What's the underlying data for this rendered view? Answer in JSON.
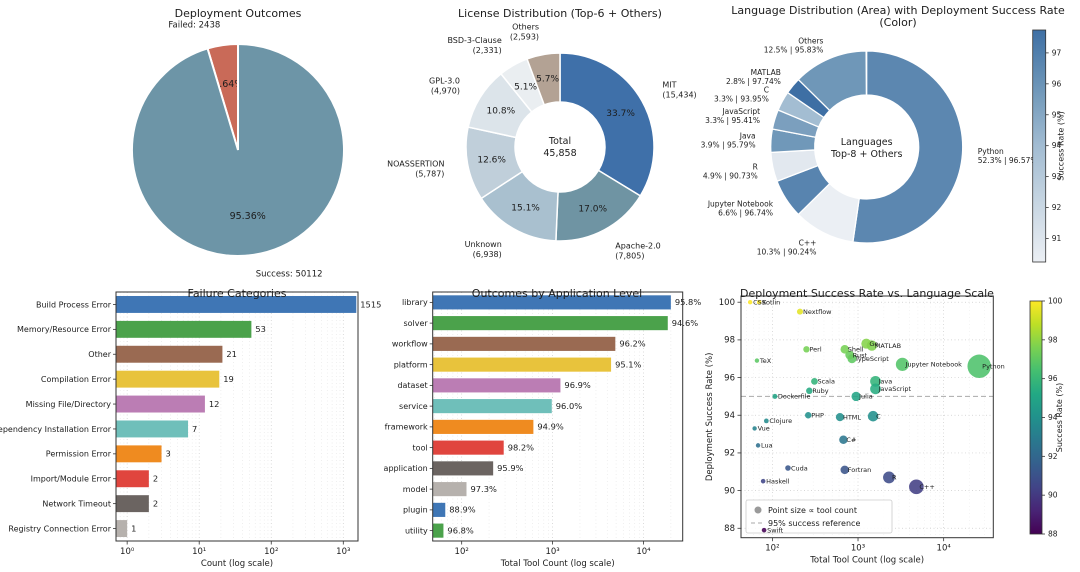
{
  "chart_data": [
    {
      "type": "pie",
      "title": "Deployment Outcomes",
      "slices": [
        {
          "name": "Failed",
          "outer_label": "Failed: 2438",
          "count": 2438,
          "pct": 4.64,
          "pct_label": "4.64%",
          "color": "#c96a58"
        },
        {
          "name": "Success",
          "outer_label": "Success: 50112",
          "count": 50112,
          "pct": 95.36,
          "pct_label": "95.36%",
          "color": "#6d95a7"
        }
      ]
    },
    {
      "type": "pie",
      "title": "License Distribution (Top-6 + Others)",
      "center_label": [
        "Total",
        "45,858"
      ],
      "slices": [
        {
          "name": "MIT",
          "count_label": "(15,434)",
          "count": 15434,
          "pct": 33.7,
          "pct_label": "33.7%",
          "color": "#3f70a9"
        },
        {
          "name": "Apache-2.0",
          "count_label": "(7,805)",
          "count": 7805,
          "pct": 17.0,
          "pct_label": "17.0%",
          "color": "#6f94a3"
        },
        {
          "name": "Unknown",
          "count_label": "(6,938)",
          "count": 6938,
          "pct": 15.1,
          "pct_label": "15.1%",
          "color": "#a9c0cf"
        },
        {
          "name": "NOASSERTION",
          "count_label": "(5,787)",
          "count": 5787,
          "pct": 12.6,
          "pct_label": "12.6%",
          "color": "#c0cfda"
        },
        {
          "name": "GPL-3.0",
          "count_label": "(4,970)",
          "count": 4970,
          "pct": 10.8,
          "pct_label": "10.8%",
          "color": "#dce4ea"
        },
        {
          "name": "BSD-3-Clause",
          "count_label": "(2,331)",
          "count": 2331,
          "pct": 5.1,
          "pct_label": "5.1%",
          "color": "#eaeef1"
        },
        {
          "name": "Others",
          "count_label": "(2,593)",
          "count": 2593,
          "pct": 5.7,
          "pct_label": "5.7%",
          "color": "#b3a294"
        }
      ]
    },
    {
      "type": "pie",
      "title": "Language Distribution (Area) with Deployment Success Rate (Color)",
      "center_label": [
        "Languages",
        "Top-8 + Others"
      ],
      "colorbar": {
        "label": "Success Rate (%)",
        "ticks": [
          91,
          92,
          93,
          94,
          95,
          96,
          97
        ],
        "min": 90.24,
        "max": 97.74
      },
      "slices": [
        {
          "name": "Python",
          "pct": 52.3,
          "rate": 96.57,
          "share_label": "52.3% | 96.57%"
        },
        {
          "name": "C++",
          "pct": 10.3,
          "rate": 90.24,
          "share_label": "10.3% | 90.24%"
        },
        {
          "name": "Jupyter Notebook",
          "pct": 6.6,
          "rate": 96.74,
          "share_label": "6.6% | 96.74%"
        },
        {
          "name": "R",
          "pct": 4.9,
          "rate": 90.73,
          "share_label": "4.9% | 90.73%"
        },
        {
          "name": "Java",
          "pct": 3.9,
          "rate": 95.79,
          "share_label": "3.9% | 95.79%"
        },
        {
          "name": "JavaScript",
          "pct": 3.3,
          "rate": 95.41,
          "share_label": "3.3% | 95.41%"
        },
        {
          "name": "C",
          "pct": 3.3,
          "rate": 93.95,
          "share_label": "3.3% | 93.95%"
        },
        {
          "name": "MATLAB",
          "pct": 2.8,
          "rate": 97.74,
          "share_label": "2.8% | 97.74%"
        },
        {
          "name": "Others",
          "pct": 12.5,
          "rate": 95.83,
          "share_label": "12.5% | 95.83%"
        }
      ]
    },
    {
      "type": "bar",
      "title": "Failure Categories",
      "xlabel": "Count (log scale)",
      "xtick_labels": [
        "10⁰",
        "10¹",
        "10²",
        "10³"
      ],
      "xtick_values": [
        1,
        10,
        100,
        1000
      ],
      "xlim": [
        0.7,
        1600
      ],
      "categories": [
        "Build Process Error",
        "Memory/Resource Error",
        "Other",
        "Compilation Error",
        "Missing File/Directory",
        "Dependency Installation Error",
        "Permission Error",
        "Import/Module Error",
        "Network Timeout",
        "Registry Connection Error"
      ],
      "values": [
        1515,
        53,
        21,
        19,
        12,
        7,
        3,
        2,
        2,
        1
      ],
      "value_labels": [
        "1515",
        "53",
        "21",
        "19",
        "12",
        "7",
        "3",
        "2",
        "2",
        "1"
      ]
    },
    {
      "type": "bar",
      "title": "Outcomes by Application Level",
      "xlabel": "Total Tool Count (log scale)",
      "xtick_labels": [
        "10²",
        "10³",
        "10⁴"
      ],
      "xtick_values": [
        100,
        1000,
        10000
      ],
      "xlim": [
        48,
        27000
      ],
      "categories": [
        "library",
        "solver",
        "workflow",
        "platform",
        "dataset",
        "service",
        "framework",
        "tool",
        "application",
        "model",
        "plugin",
        "utility"
      ],
      "values": [
        20000,
        18500,
        4900,
        4400,
        1220,
        980,
        615,
        290,
        222,
        113,
        66,
        63
      ],
      "value_labels": [
        "95.8%",
        "94.6%",
        "96.2%",
        "95.1%",
        "96.9%",
        "96.0%",
        "94.9%",
        "98.2%",
        "95.9%",
        "97.3%",
        "88.9%",
        "96.8%"
      ]
    },
    {
      "type": "scatter",
      "title": "Deployment Success Rate vs. Language Scale",
      "xlabel": "Total Tool Count (log scale)",
      "ylabel": "Deployment Success Rate (%)",
      "xtick_labels": [
        "10²",
        "10³",
        "10⁴"
      ],
      "xtick_values": [
        100,
        1000,
        10000
      ],
      "ytick_values": [
        88,
        90,
        92,
        94,
        96,
        98,
        100
      ],
      "xlim": [
        43,
        38000
      ],
      "ylim": [
        87.5,
        100.33
      ],
      "reference_value": 95,
      "legend": [
        "Point size ∝ tool count",
        "95% success reference"
      ],
      "colorbar": {
        "label": "Success Rate (%)",
        "ticks": [
          88,
          90,
          92,
          94,
          96,
          98,
          100
        ],
        "min": 88,
        "max": 100
      },
      "points": [
        {
          "name": "CSS",
          "count": 55,
          "rate": 100.0
        },
        {
          "name": "Kotlin",
          "count": 70,
          "rate": 100.0
        },
        {
          "name": "Nextflow",
          "count": 210,
          "rate": 99.5
        },
        {
          "name": "Go",
          "count": 1250,
          "rate": 97.8
        },
        {
          "name": "MATLAB",
          "count": 1450,
          "rate": 97.7
        },
        {
          "name": "Perl",
          "count": 250,
          "rate": 97.5
        },
        {
          "name": "Shell",
          "count": 700,
          "rate": 97.5
        },
        {
          "name": "Rust",
          "count": 800,
          "rate": 97.2
        },
        {
          "name": "TypeScript",
          "count": 850,
          "rate": 97.0
        },
        {
          "name": "TeX",
          "count": 66,
          "rate": 96.9
        },
        {
          "name": "Jupyter Notebook",
          "count": 3300,
          "rate": 96.7
        },
        {
          "name": "Python",
          "count": 26000,
          "rate": 96.6
        },
        {
          "name": "Java",
          "count": 1600,
          "rate": 95.8
        },
        {
          "name": "Scala",
          "count": 310,
          "rate": 95.8
        },
        {
          "name": "JavaScript",
          "count": 1600,
          "rate": 95.4
        },
        {
          "name": "Ruby",
          "count": 270,
          "rate": 95.3
        },
        {
          "name": "Dockerfile",
          "count": 107,
          "rate": 95.0
        },
        {
          "name": "Julia",
          "count": 950,
          "rate": 95.0
        },
        {
          "name": "PHP",
          "count": 262,
          "rate": 94.0
        },
        {
          "name": "C",
          "count": 1500,
          "rate": 93.95
        },
        {
          "name": "HTML",
          "count": 615,
          "rate": 93.9
        },
        {
          "name": "Clojure",
          "count": 85,
          "rate": 93.7
        },
        {
          "name": "Vue",
          "count": 62,
          "rate": 93.3
        },
        {
          "name": "C#",
          "count": 675,
          "rate": 92.7
        },
        {
          "name": "Lua",
          "count": 68,
          "rate": 92.4
        },
        {
          "name": "Cuda",
          "count": 152,
          "rate": 91.2
        },
        {
          "name": "Fortran",
          "count": 700,
          "rate": 91.1
        },
        {
          "name": "R",
          "count": 2300,
          "rate": 90.7
        },
        {
          "name": "Haskell",
          "count": 78,
          "rate": 90.5
        },
        {
          "name": "C++",
          "count": 4800,
          "rate": 90.2
        },
        {
          "name": "Swift",
          "count": 80,
          "rate": 87.9
        }
      ]
    }
  ],
  "colors": {
    "text": "#1c1c1c",
    "spine": "#333333",
    "grid_major": "#cccccc",
    "grid_minor": "#e8e8e8",
    "reference_line": "#aaaaaa",
    "bar_palette": [
      "#3f76b5",
      "#4ba24b",
      "#9a6a52",
      "#e8c33c",
      "#bb7db4",
      "#6fbfba",
      "#ef8b20",
      "#e0453e",
      "#6b6461",
      "#b6b1ad"
    ]
  }
}
